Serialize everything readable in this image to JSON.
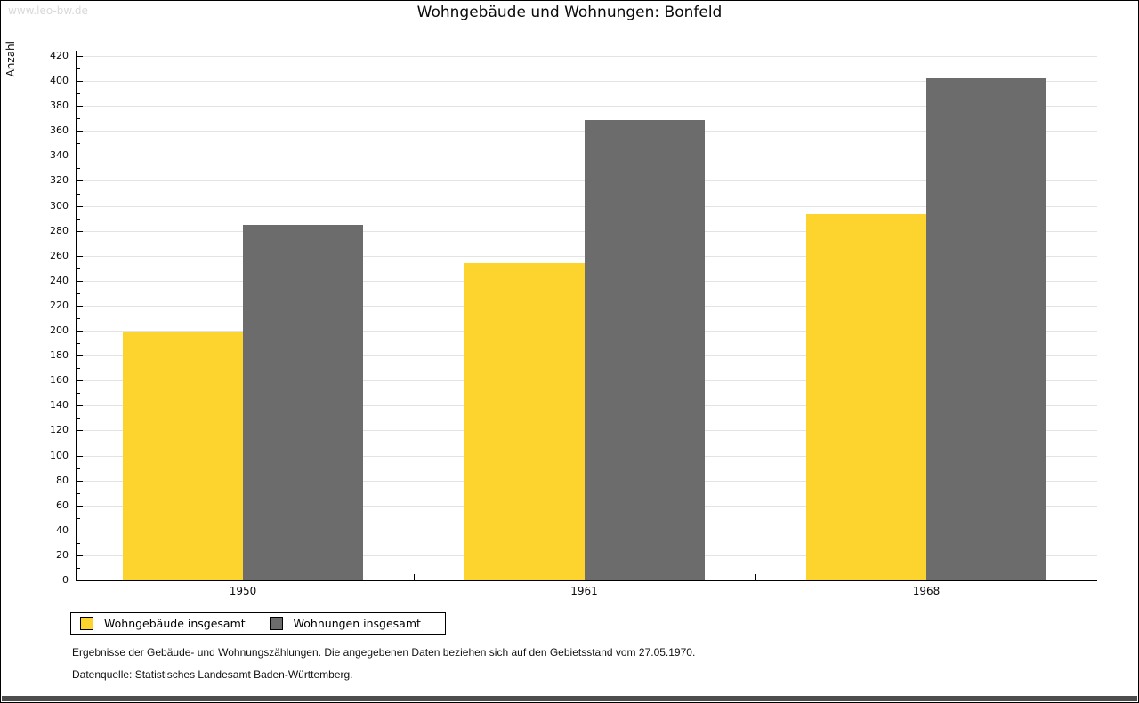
{
  "page": {
    "watermark": "www.leo-bw.de",
    "title": "Wohngebäude und Wohnungen: Bonfeld",
    "footer_line1": "Ergebnisse der Gebäude- und Wohnungszählungen. Die angegebenen Daten beziehen sich auf den Gebietsstand vom 27.05.1970.",
    "footer_line2": "Datenquelle: Statistisches Landesamt Baden-Württemberg."
  },
  "chart_data": {
    "type": "bar",
    "title": "Wohngebäude und Wohnungen: Bonfeld",
    "xlabel": "",
    "ylabel": "Anzahl",
    "categories": [
      "1950",
      "1961",
      "1968"
    ],
    "series": [
      {
        "name": "Wohngebäude insgesamt",
        "color": "#FCD42D",
        "values": [
          199,
          254,
          293
        ]
      },
      {
        "name": "Wohnungen insgesamt",
        "color": "#6C6C6C",
        "values": [
          285,
          369,
          402
        ]
      }
    ],
    "ylim": [
      0,
      420
    ],
    "ytick_major_step": 20,
    "ytick_minor_step": 10,
    "grid": true,
    "gridline_color": "#e3e3e3",
    "legend_position": "bottom-left"
  }
}
